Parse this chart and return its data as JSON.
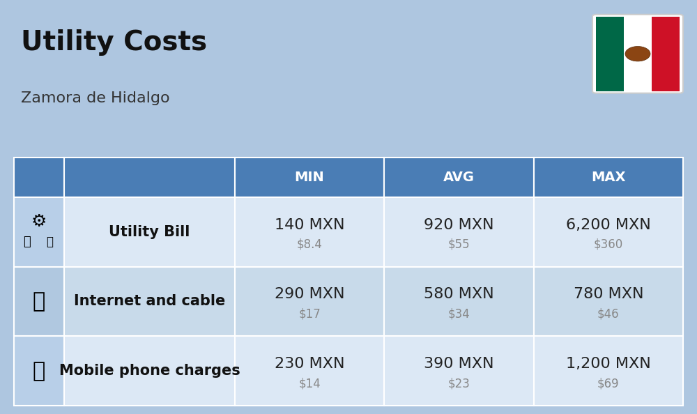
{
  "title": "Utility Costs",
  "subtitle": "Zamora de Hidalgo",
  "background_color": "#aec6e0",
  "header_bg_color": "#4a7db5",
  "header_text_color": "#ffffff",
  "row_bg_color_1": "#dce8f5",
  "row_bg_color_2": "#c8daea",
  "icon_col_bg": "#b8cfe8",
  "divider_color": "#ffffff",
  "col_headers": [
    "MIN",
    "AVG",
    "MAX"
  ],
  "rows": [
    {
      "label": "Utility Bill",
      "icon": "utility",
      "min_mxn": "140 MXN",
      "min_usd": "$8.4",
      "avg_mxn": "920 MXN",
      "avg_usd": "$55",
      "max_mxn": "6,200 MXN",
      "max_usd": "$360"
    },
    {
      "label": "Internet and cable",
      "icon": "internet",
      "min_mxn": "290 MXN",
      "min_usd": "$17",
      "avg_mxn": "580 MXN",
      "avg_usd": "$34",
      "max_mxn": "780 MXN",
      "max_usd": "$46"
    },
    {
      "label": "Mobile phone charges",
      "icon": "mobile",
      "min_mxn": "230 MXN",
      "min_usd": "$14",
      "avg_mxn": "390 MXN",
      "avg_usd": "$23",
      "max_mxn": "1,200 MXN",
      "max_usd": "$69"
    }
  ],
  "title_fontsize": 28,
  "subtitle_fontsize": 16,
  "header_fontsize": 14,
  "cell_mxn_fontsize": 16,
  "cell_usd_fontsize": 12,
  "label_fontsize": 15,
  "usd_color": "#888888",
  "cell_mxn_color": "#222222",
  "label_color": "#111111"
}
